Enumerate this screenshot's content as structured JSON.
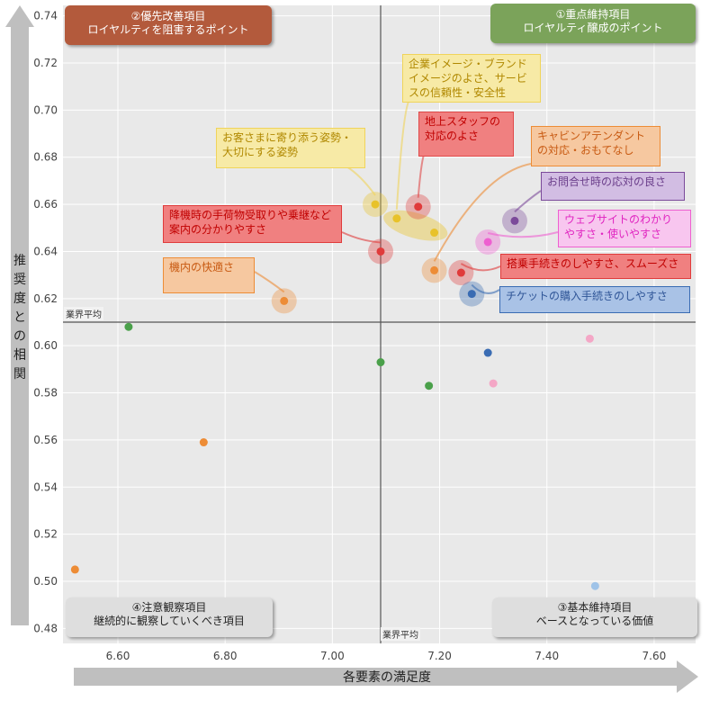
{
  "chart_data": {
    "type": "scatter",
    "xlabel": "各要素の満足度",
    "ylabel": "推奨度との相関",
    "xlim": [
      6.5,
      7.7
    ],
    "ylim": [
      0.48,
      0.74
    ],
    "xticks": [
      "6.60",
      "6.80",
      "7.00",
      "7.20",
      "7.40",
      "7.60"
    ],
    "yticks": [
      "0.48",
      "0.50",
      "0.52",
      "0.54",
      "0.56",
      "0.58",
      "0.60",
      "0.62",
      "0.64",
      "0.66",
      "0.68",
      "0.70",
      "0.72",
      "0.74"
    ],
    "x_avg": 7.09,
    "y_avg": 0.61,
    "avg_label_x": "業界平均",
    "avg_label_y": "業界平均",
    "highlighted": [
      {
        "label": "企業イメージ・ブランドイメージのよさ、サービスの信頼性・安全性",
        "lines": [
          "企業イメージ・ブランド",
          "イメージのよさ、サービ",
          "スの信頼性・安全性"
        ],
        "x": 7.12,
        "y": 0.654,
        "x2": 7.19,
        "y2": 0.648,
        "color": "#e8c22a"
      },
      {
        "label": "地上スタッフの対応のよさ",
        "lines": [
          "地上スタッフの",
          "対応のよさ"
        ],
        "x": 7.16,
        "y": 0.659,
        "color": "#e03b3b"
      },
      {
        "label": "キャビンアテンダントの対応・おもてなし",
        "lines": [
          "キャビンアテンダント",
          "の対応・おもてなし"
        ],
        "x": 7.19,
        "y": 0.632,
        "color": "#ed8c36"
      },
      {
        "label": "お客さまに寄り添う姿勢・大切にする姿勢",
        "lines": [
          "お客さまに寄り添う姿勢・",
          "大切にする姿勢"
        ],
        "x": 7.08,
        "y": 0.66,
        "color": "#e8c22a"
      },
      {
        "label": "お問合せ時の応対の良さ",
        "lines": [
          "お問合せ時の応対の良さ"
        ],
        "x": 7.34,
        "y": 0.653,
        "color": "#7b4a9a"
      },
      {
        "label": "降機時の手荷物受取りや乗継など案内の分かりやすさ",
        "lines": [
          "降機時の手荷物受取りや乗継など",
          "案内の分かりやすさ"
        ],
        "x": 7.09,
        "y": 0.64,
        "color": "#e03b3b"
      },
      {
        "label": "ウェブサイトのわかりやすさ・使いやすさ",
        "lines": [
          "ウェブサイトのわかり",
          "やすさ・使いやすさ"
        ],
        "x": 7.29,
        "y": 0.644,
        "color": "#ee5fd0"
      },
      {
        "label": "搭乗手続きのしやすさ、スムーズさ",
        "lines": [
          "搭乗手続きのしやすさ、スムーズさ"
        ],
        "x": 7.24,
        "y": 0.631,
        "color": "#e03b3b"
      },
      {
        "label": "機内の快適さ",
        "lines": [
          "機内の快適さ"
        ],
        "x": 6.91,
        "y": 0.619,
        "color": "#ed8c36"
      },
      {
        "label": "チケットの購入手続きのしやすさ",
        "lines": [
          "チケットの購入手続きのしやすさ"
        ],
        "x": 7.26,
        "y": 0.622,
        "color": "#3a6cb3"
      }
    ],
    "others": [
      {
        "x": 6.62,
        "y": 0.608,
        "color": "#4aa04a"
      },
      {
        "x": 7.09,
        "y": 0.593,
        "color": "#4aa04a"
      },
      {
        "x": 7.18,
        "y": 0.583,
        "color": "#4aa04a"
      },
      {
        "x": 7.29,
        "y": 0.597,
        "color": "#3a6cb3"
      },
      {
        "x": 7.3,
        "y": 0.584,
        "color": "#f4a7c6"
      },
      {
        "x": 7.48,
        "y": 0.603,
        "color": "#f4a7c6"
      },
      {
        "x": 6.76,
        "y": 0.559,
        "color": "#ed8c36"
      },
      {
        "x": 6.52,
        "y": 0.505,
        "color": "#ed8c36"
      },
      {
        "x": 7.49,
        "y": 0.498,
        "color": "#9fc3e8"
      }
    ]
  },
  "quadrants": {
    "top_left": {
      "line1": "②優先改善項目",
      "line2": "ロイヤルティを阻害するポイント"
    },
    "top_right": {
      "line1": "①重点維持項目",
      "line2": "ロイヤルティ醸成のポイント"
    },
    "bottom_left": {
      "line1": "④注意観察項目",
      "line2": "継続的に観察していくべき項目"
    },
    "bottom_right": {
      "line1": "③基本維持項目",
      "line2": "ベースとなっている価値"
    }
  },
  "colors": {
    "plot_bg": "#e9e9e9",
    "grid": "#ffffff",
    "arrow": "#bfbfbf"
  }
}
